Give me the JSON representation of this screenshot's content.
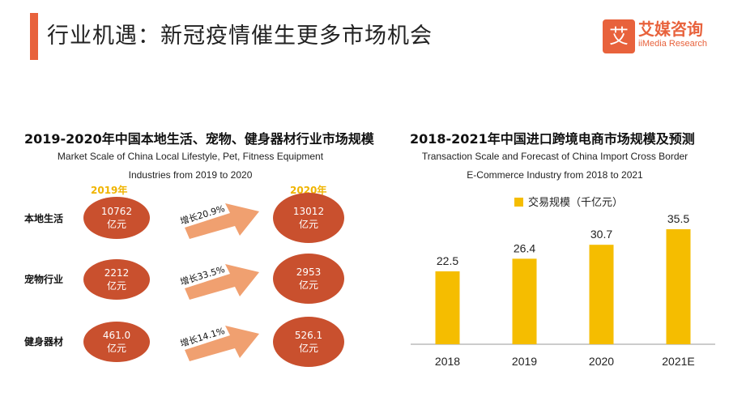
{
  "header": {
    "title": "行业机遇：新冠疫情催生更多市场机会"
  },
  "brand": {
    "icon_char": "艾",
    "name_cn": "艾媒咨询",
    "name_en": "iiMedia Research",
    "color": "#e8623c"
  },
  "left_panel": {
    "title": "2019-2020年中国本地生活、宠物、健身器材行业市场规模",
    "subtitle_line1": "Market Scale of China Local Lifestyle, Pet, Fitness Equipment",
    "subtitle_line2": "Industries from 2019 to 2020",
    "year_2019": "2019年",
    "year_2020": "2020年",
    "rows": [
      {
        "label": "本地生活",
        "v2019": "10762",
        "v2020": "13012",
        "unit": "亿元",
        "growth": "增长20.9%"
      },
      {
        "label": "宠物行业",
        "v2019": "2212",
        "v2020": "2953",
        "unit": "亿元",
        "growth": "增长33.5%"
      },
      {
        "label": "健身器材",
        "v2019": "461.0",
        "v2020": "526.1",
        "unit": "亿元",
        "growth": "增长14.1%"
      }
    ]
  },
  "right_panel": {
    "title": "2018-2021年中国进口跨境电商市场规模及预测",
    "subtitle_line1": "Transaction Scale and Forecast of China Import Cross Border",
    "subtitle_line2": "E-Commerce Industry from 2018 to 2021"
  },
  "chart_data": {
    "type": "bar",
    "categories": [
      "2018",
      "2019",
      "2020",
      "2021E"
    ],
    "series": [
      {
        "name": "交易规模（千亿元）",
        "values": [
          22.5,
          26.4,
          30.7,
          35.5
        ]
      }
    ],
    "value_labels": [
      "22.5",
      "26.4",
      "30.7",
      "35.5"
    ],
    "legend_position": "top",
    "bar_color": "#f5bd00",
    "grid": false,
    "ylim": [
      0,
      40
    ]
  }
}
